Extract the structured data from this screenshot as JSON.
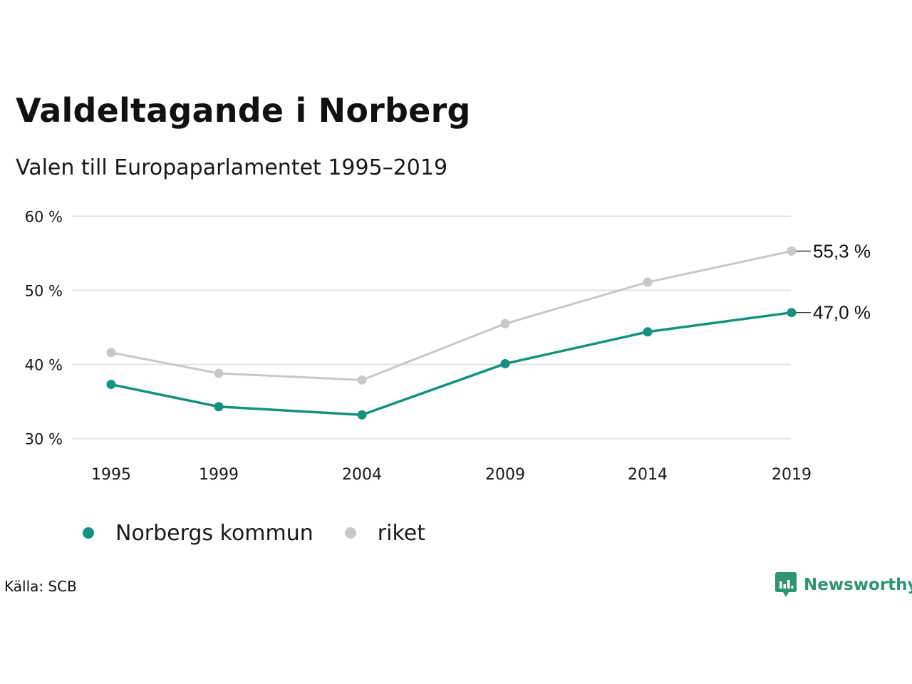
{
  "header": {
    "title": "Valdeltagande i Norberg",
    "subtitle": "Valen till Europaparlamentet 1995–2019"
  },
  "chart_data": {
    "type": "line",
    "title": "Valdeltagande i Norberg",
    "subtitle": "Valen till Europaparlamentet 1995–2019",
    "x": [
      1995,
      1999,
      2004,
      2009,
      2014,
      2019
    ],
    "x_tick_labels": [
      "1995",
      "1999",
      "2004",
      "2009",
      "2014",
      "2019"
    ],
    "y_ticks": [
      30,
      40,
      50,
      60
    ],
    "y_tick_labels": [
      "30 %",
      "40 %",
      "50 %",
      "60 %"
    ],
    "ylim": [
      30,
      60
    ],
    "grid": "horizontal",
    "legend_placement": "bottom-left",
    "series": [
      {
        "name": "Norbergs kommun",
        "color": "#15917f",
        "values": [
          37.3,
          34.3,
          33.2,
          40.1,
          44.4,
          47.0
        ],
        "end_label": "47,0 %"
      },
      {
        "name": "riket",
        "color": "#c8c8c8",
        "values": [
          41.6,
          38.8,
          37.9,
          45.5,
          51.1,
          55.3
        ],
        "end_label": "55,3 %"
      }
    ]
  },
  "legend": {
    "items": [
      {
        "label": "Norbergs kommun",
        "color": "#15917f"
      },
      {
        "label": "riket",
        "color": "#c8c8c8"
      }
    ]
  },
  "footer": {
    "source": "Källa: SCB",
    "brand_name": "Newsworthy",
    "brand_color": "#2f9470",
    "brand_icon": "newsworthy-logo-icon"
  }
}
